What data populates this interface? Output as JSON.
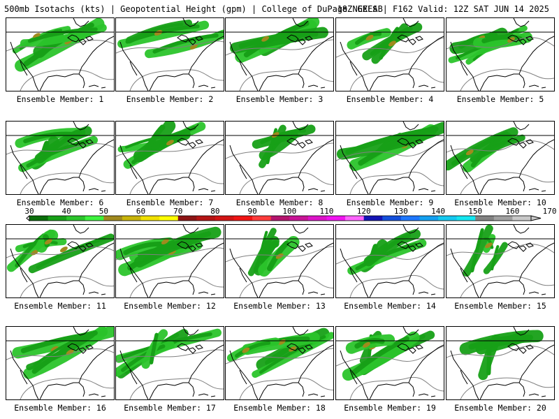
{
  "header": {
    "title": "500mb Isotachs (kts) | Geopotential Height (gpm) | College of DuPage NEXLAB",
    "run": "18Z GEFS | F162 Valid: 12Z SAT JUN 14 2025"
  },
  "colorbar": {
    "ticks": [
      "30",
      "40",
      "50",
      "60",
      "70",
      "80",
      "90",
      "100",
      "110",
      "120",
      "130",
      "140",
      "150",
      "160",
      "170"
    ],
    "colors": [
      "#0a6e0a",
      "#17a017",
      "#2bc42b",
      "#3ef23e",
      "#a08a1e",
      "#c8b40a",
      "#f0e000",
      "#ffff00",
      "#8c1414",
      "#b41414",
      "#d21414",
      "#f01414",
      "#ff3c3c",
      "#b4146e",
      "#c81496",
      "#dc14c8",
      "#f014f0",
      "#ff64ff",
      "#1414b4",
      "#1450dc",
      "#1e78ff",
      "#14a0f0",
      "#14c8f0",
      "#14e6f0",
      "#828282",
      "#a0a0a0",
      "#c8c8c8"
    ]
  },
  "members": [
    {
      "label": "Ensemble Member: 1"
    },
    {
      "label": "Ensemble Member: 2"
    },
    {
      "label": "Ensemble Member: 3"
    },
    {
      "label": "Ensemble Member: 4"
    },
    {
      "label": "Ensemble Member: 5"
    },
    {
      "label": "Ensemble Member: 6"
    },
    {
      "label": "Ensemble Member: 7"
    },
    {
      "label": "Ensemble Member: 8"
    },
    {
      "label": "Ensemble Member: 9"
    },
    {
      "label": "Ensemble Member: 10"
    },
    {
      "label": "Ensemble Member: 11"
    },
    {
      "label": "Ensemble Member: 12"
    },
    {
      "label": "Ensemble Member: 13"
    },
    {
      "label": "Ensemble Member: 14"
    },
    {
      "label": "Ensemble Member: 15"
    },
    {
      "label": "Ensemble Member: 16"
    },
    {
      "label": "Ensemble Member: 17"
    },
    {
      "label": "Ensemble Member: 18"
    },
    {
      "label": "Ensemble Member: 19"
    },
    {
      "label": "Ensemble Member: 20"
    }
  ]
}
